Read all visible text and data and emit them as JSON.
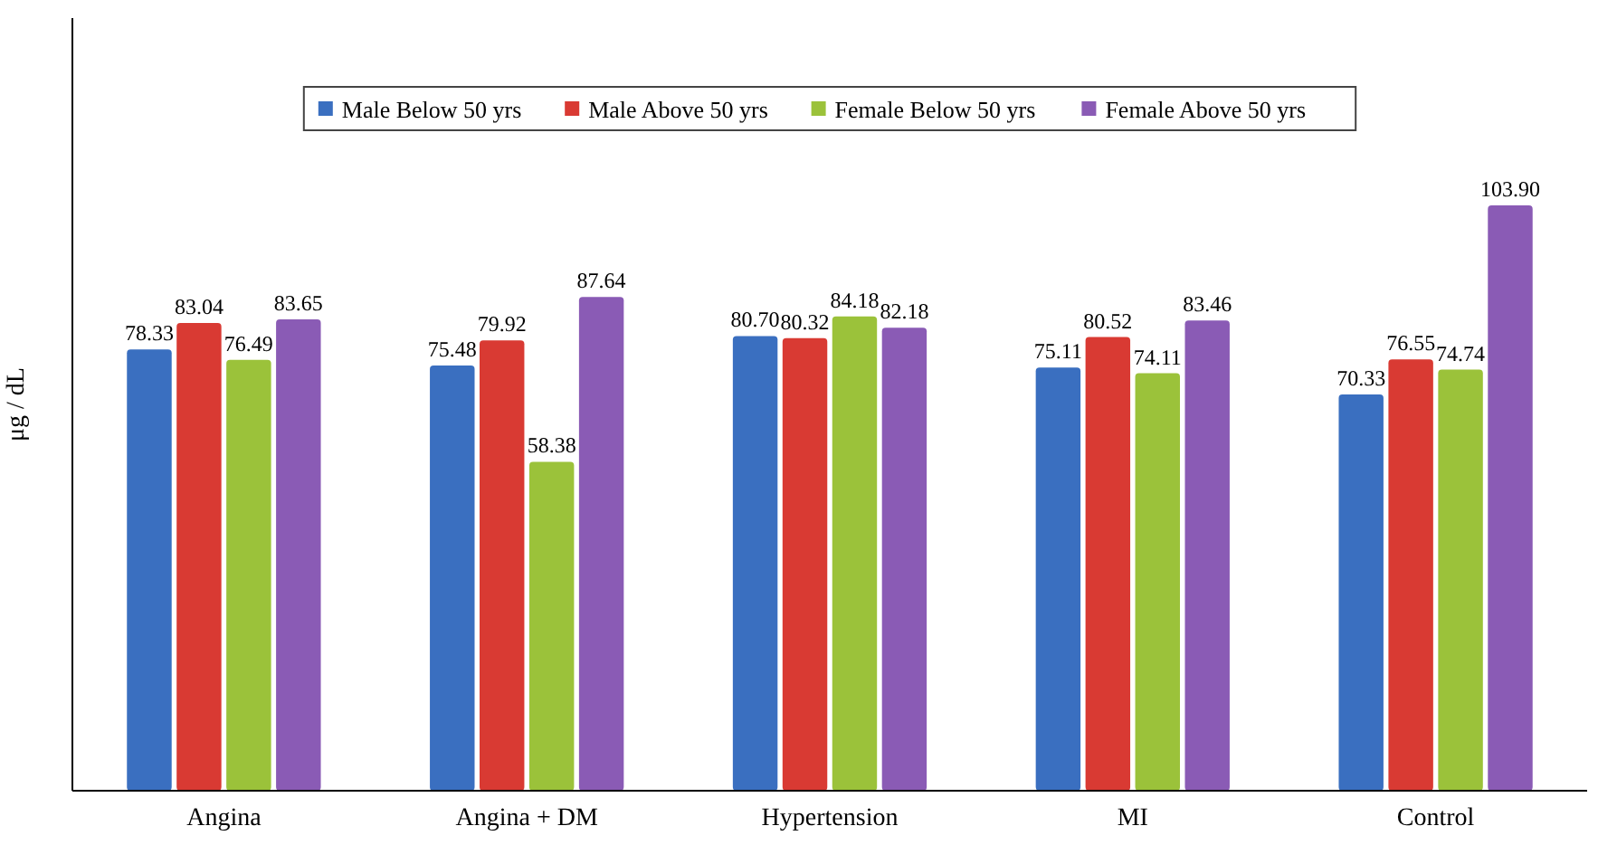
{
  "chart_data": {
    "type": "bar",
    "ylabel": "μg / dL",
    "categories": [
      "Angina",
      "Angina + DM",
      "Hypertension",
      "MI",
      "Control"
    ],
    "series": [
      {
        "name": "Male Below 50 yrs",
        "color": "#3a6fc0",
        "values": [
          78.33,
          75.48,
          80.7,
          75.11,
          70.33
        ],
        "value_labels": [
          "78.33",
          "75.48",
          "80.70",
          "75.11",
          "70.33"
        ]
      },
      {
        "name": "Male Above 50 yrs",
        "color": "#d93a33",
        "values": [
          83.04,
          79.92,
          80.32,
          80.52,
          76.55
        ],
        "value_labels": [
          "83.04",
          "79.92",
          "80.32",
          "80.52",
          "76.55"
        ]
      },
      {
        "name": "Female Below 50 yrs",
        "color": "#9bc23a",
        "values": [
          76.49,
          58.38,
          84.18,
          74.11,
          74.74
        ],
        "value_labels": [
          "76.49",
          "58.38",
          "84.18",
          "74.11",
          "74.74"
        ]
      },
      {
        "name": "Female Above 50 yrs",
        "color": "#8a5bb5",
        "values": [
          83.65,
          87.64,
          82.18,
          83.46,
          103.9
        ],
        "value_labels": [
          "83.65",
          "87.64",
          "82.18",
          "83.46",
          "103.90"
        ]
      }
    ],
    "legend": "top"
  }
}
